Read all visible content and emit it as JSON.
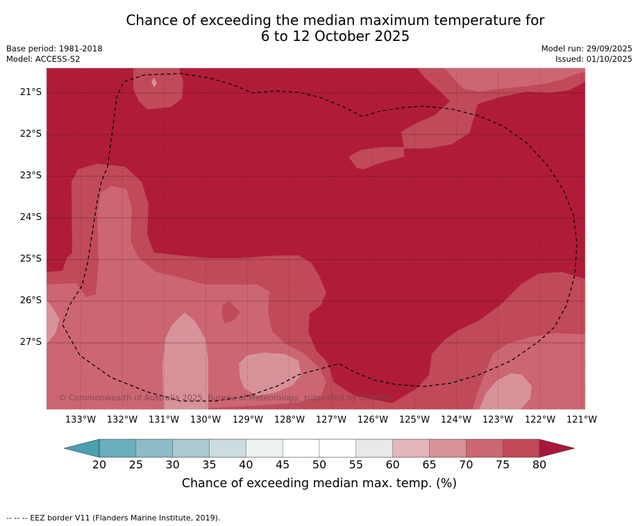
{
  "title": {
    "line1": "Chance of exceeding the median maximum temperature for",
    "line2": "6 to 12 October 2025"
  },
  "meta": {
    "base_period": "Base period: 1981-2018",
    "model": "Model: ACCESS-S2",
    "model_run": "Model run: 29/09/2025",
    "issued": "Issued: 01/10/2025"
  },
  "map": {
    "lat_labels": [
      "21°S",
      "22°S",
      "23°S",
      "24°S",
      "25°S",
      "26°S",
      "27°S"
    ],
    "lon_labels": [
      "133°W",
      "132°W",
      "131°W",
      "130°W",
      "129°W",
      "128°W",
      "127°W",
      "126°W",
      "125°W",
      "124°W",
      "123°W",
      "122°W",
      "121°W"
    ],
    "copyright": "© Commonwealth of Australia 2025, Bureau of Meteorology, supported by COSPPac",
    "colors": {
      "c80plus": "#b01c38",
      "c75_80": "#c04a58",
      "c70_75": "#cc6672",
      "c65_70": "#d7929a",
      "c60_65": "#e3b6bc"
    }
  },
  "colorbar": {
    "ticks": [
      "20",
      "25",
      "30",
      "35",
      "40",
      "45",
      "50",
      "55",
      "60",
      "65",
      "70",
      "75",
      "80"
    ],
    "colors": [
      "#6aaebd",
      "#8bbcc7",
      "#aacacf",
      "#cddcde",
      "#edf1f2",
      "#ffffff",
      "#ffffff",
      "#e9e9e9",
      "#e3b6bc",
      "#d7929a",
      "#cc6672",
      "#c04a58"
    ],
    "under_color": "#4b9fb2",
    "over_color": "#a8183a",
    "label": "Chance of exceeding median max. temp. (%)"
  },
  "footer": {
    "dash_glyph": "--  --  --",
    "eez_legend": "EEZ border V11 (Flanders Marine Institute, 2019)."
  }
}
